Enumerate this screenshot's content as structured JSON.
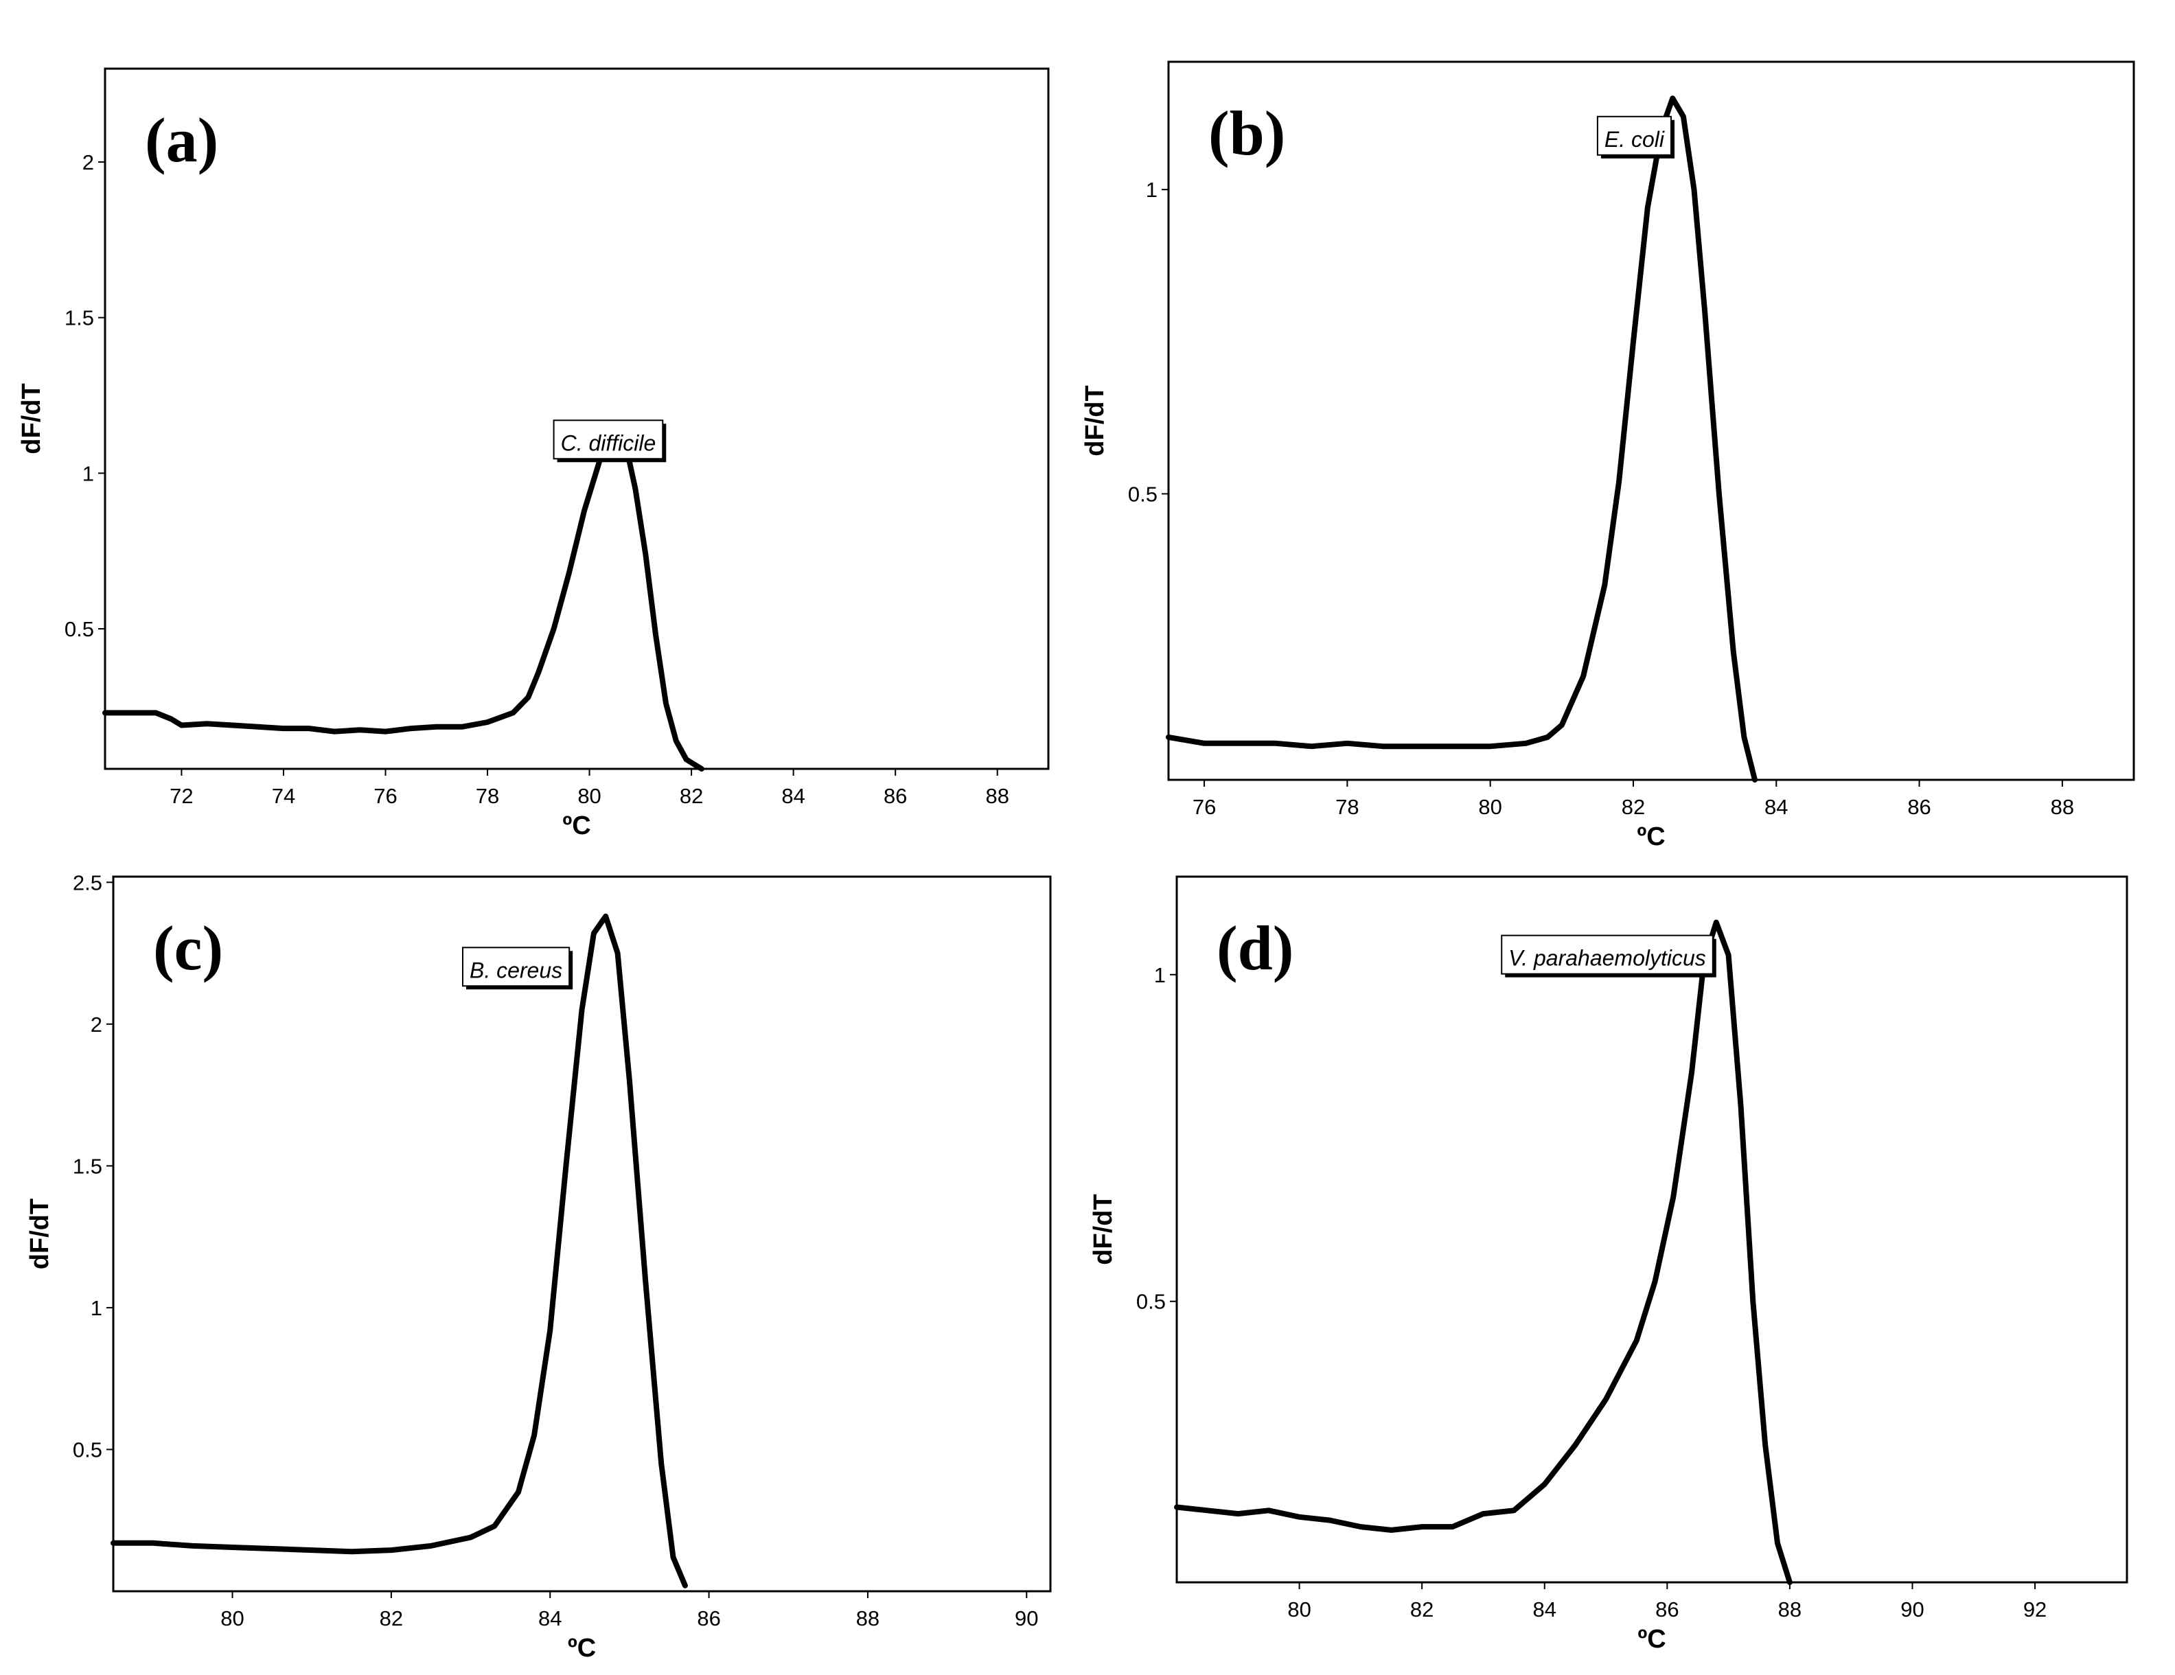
{
  "chart_data": [
    {
      "type": "line",
      "panel_label": "(a)",
      "xlabel": "ºC",
      "ylabel": "dF/dT",
      "xlim": [
        70.5,
        89.0
      ],
      "ylim": [
        0.05,
        2.3
      ],
      "x_ticks": [
        72,
        74,
        76,
        78,
        80,
        82,
        84,
        86,
        88
      ],
      "y_ticks": [
        0.5,
        1,
        1.5,
        2
      ],
      "grid": false,
      "series": [
        {
          "name": "C. difficile",
          "x": [
            70.5,
            71.0,
            71.5,
            71.8,
            72.0,
            72.5,
            73.0,
            73.5,
            74.0,
            74.5,
            75.0,
            75.5,
            76.0,
            76.5,
            77.0,
            77.5,
            78.0,
            78.5,
            78.8,
            79.0,
            79.3,
            79.6,
            79.9,
            80.2,
            80.4,
            80.55,
            80.7,
            80.9,
            81.1,
            81.3,
            81.5,
            81.7,
            81.9,
            82.1,
            82.2
          ],
          "y": [
            0.23,
            0.23,
            0.23,
            0.21,
            0.19,
            0.195,
            0.19,
            0.185,
            0.18,
            0.18,
            0.17,
            0.175,
            0.17,
            0.18,
            0.185,
            0.185,
            0.2,
            0.23,
            0.28,
            0.36,
            0.5,
            0.68,
            0.88,
            1.04,
            1.12,
            1.15,
            1.1,
            0.95,
            0.74,
            0.48,
            0.26,
            0.14,
            0.08,
            0.06,
            0.05
          ]
        }
      ],
      "annotations": [
        {
          "text": "C. difficile",
          "x": 79.3,
          "y": 1.17
        }
      ]
    },
    {
      "type": "line",
      "panel_label": "(b)",
      "xlabel": "ºC",
      "ylabel": "dF/dT",
      "xlim": [
        75.5,
        89.0
      ],
      "ylim": [
        0.03,
        1.21
      ],
      "x_ticks": [
        76,
        78,
        80,
        82,
        84,
        86,
        88
      ],
      "y_ticks": [
        0.5,
        1
      ],
      "grid": false,
      "series": [
        {
          "name": "E. coli",
          "x": [
            75.5,
            76.0,
            76.5,
            77.0,
            77.5,
            78.0,
            78.5,
            79.0,
            79.5,
            80.0,
            80.5,
            80.8,
            81.0,
            81.3,
            81.6,
            81.8,
            82.0,
            82.2,
            82.4,
            82.55,
            82.7,
            82.85,
            83.0,
            83.2,
            83.4,
            83.55,
            83.7
          ],
          "y": [
            0.1,
            0.09,
            0.09,
            0.09,
            0.085,
            0.09,
            0.085,
            0.085,
            0.085,
            0.085,
            0.09,
            0.1,
            0.12,
            0.2,
            0.35,
            0.52,
            0.75,
            0.97,
            1.1,
            1.15,
            1.12,
            1.0,
            0.8,
            0.5,
            0.24,
            0.1,
            0.03
          ]
        }
      ],
      "annotations": [
        {
          "text": "E. coli",
          "x": 81.5,
          "y": 1.12
        }
      ]
    },
    {
      "type": "line",
      "panel_label": "(c)",
      "xlabel": "ºC",
      "ylabel": "dF/dT",
      "xlim": [
        78.5,
        90.3
      ],
      "ylim": [
        0.0,
        2.52
      ],
      "x_ticks": [
        80,
        82,
        84,
        86,
        88,
        90
      ],
      "y_ticks": [
        0.5,
        1,
        1.5,
        2,
        2.5
      ],
      "grid": false,
      "series": [
        {
          "name": "B. cereus",
          "x": [
            78.5,
            79.0,
            79.5,
            80.0,
            80.5,
            81.0,
            81.5,
            82.0,
            82.5,
            83.0,
            83.3,
            83.6,
            83.8,
            84.0,
            84.2,
            84.4,
            84.55,
            84.7,
            84.85,
            85.0,
            85.2,
            85.4,
            85.55,
            85.7
          ],
          "y": [
            0.17,
            0.17,
            0.16,
            0.155,
            0.15,
            0.145,
            0.14,
            0.145,
            0.16,
            0.19,
            0.23,
            0.35,
            0.55,
            0.92,
            1.5,
            2.05,
            2.32,
            2.38,
            2.25,
            1.8,
            1.1,
            0.45,
            0.12,
            0.02
          ]
        }
      ],
      "annotations": [
        {
          "text": "B. cereus",
          "x": 82.9,
          "y": 2.27
        }
      ]
    },
    {
      "type": "line",
      "panel_label": "(d)",
      "xlabel": "ºC",
      "ylabel": "dF/dT",
      "xlim": [
        78.0,
        93.5
      ],
      "ylim": [
        0.07,
        1.15
      ],
      "x_ticks": [
        80,
        82,
        84,
        86,
        88,
        90,
        92
      ],
      "y_ticks": [
        0.5,
        1
      ],
      "grid": false,
      "series": [
        {
          "name": "V. parahaemolyticus",
          "x": [
            78.0,
            78.5,
            79.0,
            79.5,
            80.0,
            80.5,
            81.0,
            81.5,
            82.0,
            82.5,
            83.0,
            83.5,
            84.0,
            84.5,
            85.0,
            85.5,
            85.8,
            86.1,
            86.4,
            86.6,
            86.8,
            87.0,
            87.2,
            87.4,
            87.6,
            87.8,
            88.0
          ],
          "y": [
            0.185,
            0.18,
            0.175,
            0.18,
            0.17,
            0.165,
            0.155,
            0.15,
            0.155,
            0.155,
            0.175,
            0.18,
            0.22,
            0.28,
            0.35,
            0.44,
            0.53,
            0.66,
            0.85,
            1.02,
            1.08,
            1.03,
            0.8,
            0.5,
            0.28,
            0.13,
            0.07
          ]
        }
      ],
      "annotations": [
        {
          "text": "V. parahaemolyticus",
          "x": 83.3,
          "y": 1.06
        }
      ]
    }
  ]
}
